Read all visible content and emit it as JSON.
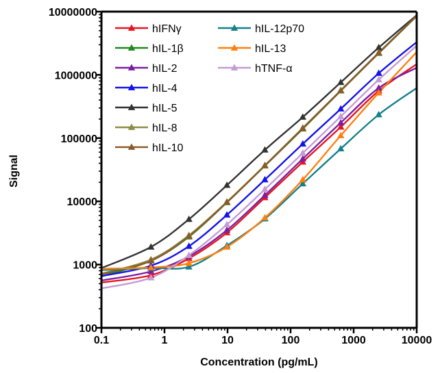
{
  "chart_data": {
    "type": "line",
    "title": "",
    "xlabel": "Concentration (pg/mL)",
    "ylabel": "Signal",
    "x_scale": "log",
    "y_scale": "log",
    "xlim": [
      0.1,
      10000
    ],
    "ylim": [
      100,
      10000000
    ],
    "x_ticks": [
      0.1,
      1,
      10,
      100,
      1000,
      10000
    ],
    "x_tick_labels": [
      "0.1",
      "1",
      "10",
      "100",
      "1000",
      "10000"
    ],
    "y_ticks": [
      100,
      1000,
      10000,
      100000,
      1000000,
      10000000
    ],
    "y_tick_labels": [
      "100",
      "1000",
      "10000",
      "100000",
      "1000000",
      "10000000"
    ],
    "grid": false,
    "legend_position": "top-left",
    "x": [
      0.61,
      2.44,
      9.77,
      39.1,
      156,
      625,
      2500
    ],
    "series": [
      {
        "name": "hIFNγ",
        "color": "#e8141e",
        "marker": "triangle",
        "values": [
          680,
          1250,
          3200,
          11500,
          42000,
          150000,
          560000
        ],
        "curve": [
          [
            0.1,
            520
          ],
          [
            10000,
            1480000
          ]
        ]
      },
      {
        "name": "hIL-1β",
        "color": "#1d8a1d",
        "marker": "triangle",
        "values": [
          1150,
          2750,
          9600,
          36500,
          140000,
          560000,
          2200000
        ],
        "curve": [
          [
            0.1,
            650
          ],
          [
            10000,
            8500000
          ]
        ]
      },
      {
        "name": "hIL-2",
        "color": "#7b1fa2",
        "marker": "triangle",
        "values": [
          780,
          1350,
          3500,
          12500,
          47000,
          175000,
          620000
        ],
        "curve": [
          [
            0.1,
            560
          ],
          [
            10000,
            1300000
          ]
        ]
      },
      {
        "name": "hIL-4",
        "color": "#1414e8",
        "marker": "triangle",
        "values": [
          960,
          1950,
          6100,
          22000,
          81000,
          290000,
          1060000
        ],
        "curve": [
          [
            0.1,
            660
          ],
          [
            10000,
            3300000
          ]
        ]
      },
      {
        "name": "hIL-5",
        "color": "#333333",
        "marker": "triangle",
        "values": [
          1900,
          5200,
          18000,
          65000,
          215000,
          760000,
          2700000
        ],
        "curve": [
          [
            0.1,
            880
          ],
          [
            10000,
            8800000
          ]
        ]
      },
      {
        "name": "hIL-8",
        "color": "#8c8c46",
        "marker": "triangle",
        "values": [
          1200,
          2900,
          9800,
          37000,
          145000,
          570000,
          2250000
        ],
        "curve": [
          [
            0.1,
            720
          ],
          [
            10000,
            8600000
          ]
        ]
      },
      {
        "name": "hIL-10",
        "color": "#8b5a2b",
        "marker": "triangle",
        "values": [
          1150,
          2800,
          9700,
          36800,
          142000,
          565000,
          2220000
        ],
        "curve": [
          [
            0.1,
            700
          ],
          [
            10000,
            8550000
          ]
        ]
      },
      {
        "name": "hIL-12p70",
        "color": "#14808c",
        "marker": "triangle",
        "values": [
          880,
          920,
          2000,
          5300,
          19000,
          68000,
          235000
        ],
        "curve": [
          [
            0.1,
            820
          ],
          [
            10000,
            620000
          ]
        ]
      },
      {
        "name": "hIL-13",
        "color": "#ff7f0e",
        "marker": "triangle",
        "values": [
          900,
          1050,
          1900,
          5500,
          22000,
          110000,
          520000
        ],
        "curve": [
          [
            0.1,
            860
          ],
          [
            10000,
            2300000
          ]
        ]
      },
      {
        "name": "hTNF-α",
        "color": "#c39bd3",
        "marker": "triangle",
        "values": [
          620,
          1400,
          4300,
          15500,
          58000,
          220000,
          840000
        ],
        "curve": [
          [
            0.1,
            420
          ],
          [
            10000,
            2900000
          ]
        ]
      }
    ]
  }
}
